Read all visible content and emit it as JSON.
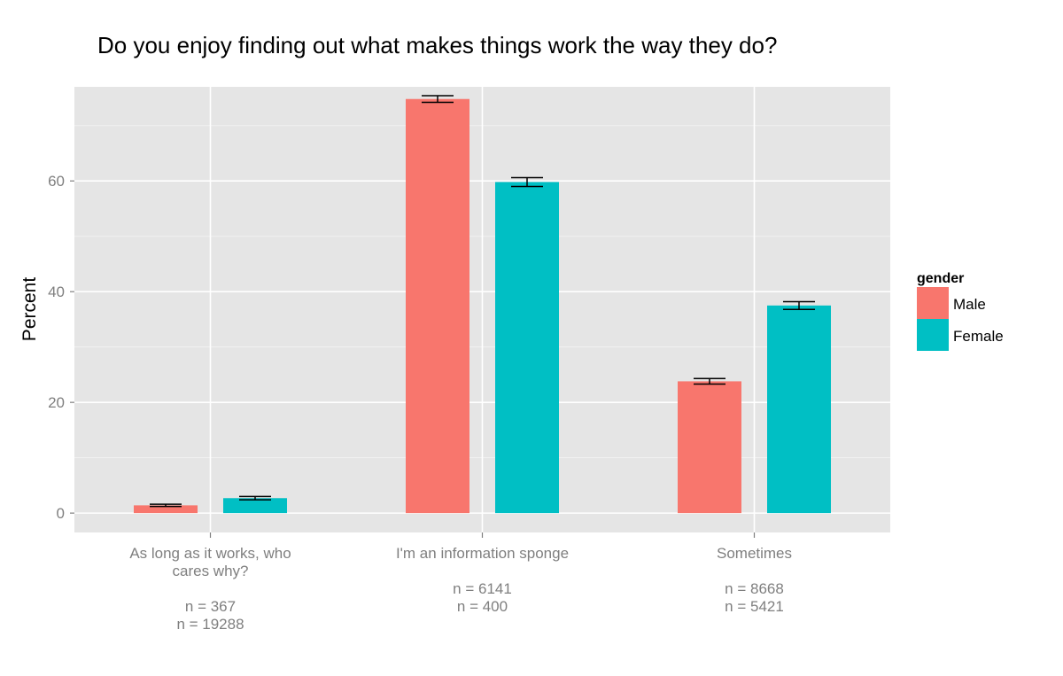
{
  "chart_data": {
    "type": "bar",
    "title": "Do you enjoy finding out what makes things work the way they do?",
    "xlabel": "",
    "ylabel": "Percent",
    "ylim": [
      -3.5,
      77
    ],
    "yticks": [
      0,
      20,
      40,
      60
    ],
    "categories": [
      {
        "label_lines": [
          "As long as it works, who",
          "cares why?"
        ],
        "n_lines": [
          "n = 367",
          "n = 19288"
        ]
      },
      {
        "label_lines": [
          "I'm an information sponge"
        ],
        "n_lines": [
          "n = 6141",
          "n = 400"
        ]
      },
      {
        "label_lines": [
          "Sometimes"
        ],
        "n_lines": [
          "n = 8668",
          "n = 5421"
        ]
      }
    ],
    "series": [
      {
        "name": "Male",
        "color": "#F8766D",
        "values": [
          1.4,
          74.8,
          23.8
        ],
        "errors": [
          0.2,
          0.6,
          0.5
        ]
      },
      {
        "name": "Female",
        "color": "#00BFC4",
        "values": [
          2.7,
          59.8,
          37.5
        ],
        "errors": [
          0.3,
          0.8,
          0.7
        ]
      }
    ],
    "legend": {
      "title": "gender",
      "position": "right"
    },
    "grid": true
  }
}
